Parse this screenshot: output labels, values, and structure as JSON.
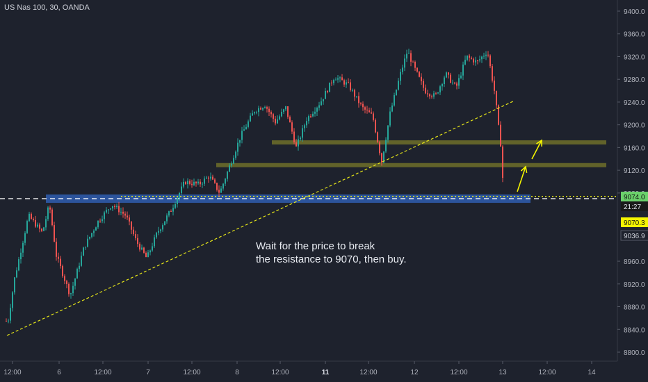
{
  "title": "US Nas 100, 30, OANDA",
  "annotation": {
    "line1": "Wait for the price to break",
    "line2": "the resistance to 9070, then buy."
  },
  "colors": {
    "background": "#1e222d",
    "up_candle": "#26a69a",
    "down_candle": "#ef5350",
    "trendline": "#e6e619",
    "zone": "#6e6e2a",
    "support_zone": "#2e5aa8",
    "arrow": "#f5f500",
    "text": "#b2b5be"
  },
  "chart_data": {
    "type": "candlestick",
    "symbol": "US Nas 100",
    "timeframe": "30",
    "source": "OANDA",
    "ylim": [
      8780,
      9420
    ],
    "y_ticks": [
      9400.0,
      9360.0,
      9320.0,
      9280.0,
      9240.0,
      9200.0,
      9160.0,
      9120.0,
      9080.0,
      8960.0,
      8920.0,
      8880.0,
      8840.0,
      8800.0
    ],
    "x_ticks": [
      "12:00",
      "6",
      "12:00",
      "7",
      "12:00",
      "8",
      "12:00",
      "11",
      "12:00",
      "12",
      "12:00",
      "13",
      "12:00",
      "14"
    ],
    "price_labels": [
      {
        "label": "9074.0",
        "value": 9074.0,
        "color": "#6bd16b"
      },
      {
        "label": "21:27",
        "value": 9057,
        "color": "#1a1a1a"
      },
      {
        "label": "9070.3",
        "value": 9047,
        "color": "#f5f500"
      },
      {
        "label": "9036.9",
        "value": 9036.9,
        "color": "#1e222d"
      }
    ],
    "close_value": 9070.3,
    "support_level": 9070,
    "horizontal_zones": [
      {
        "name": "resistance zone 1",
        "value": 9169
      },
      {
        "name": "resistance zone 2",
        "value": 9129
      },
      {
        "name": "support zone",
        "value": 9070
      }
    ],
    "dotted_line": 9074.0,
    "trendline": {
      "from": {
        "x": "5 10:00",
        "y": 8830
      },
      "to": {
        "x": "13 00:30",
        "y": 9245
      }
    },
    "candles_path": [
      [
        0,
        8875
      ],
      [
        10,
        8850
      ],
      [
        20,
        8930
      ],
      [
        40,
        9040
      ],
      [
        60,
        9010
      ],
      [
        70,
        9060
      ],
      [
        80,
        8970
      ],
      [
        100,
        8900
      ],
      [
        120,
        8985
      ],
      [
        140,
        9030
      ],
      [
        160,
        9060
      ],
      [
        180,
        9040
      ],
      [
        195,
        8995
      ],
      [
        210,
        8965
      ],
      [
        225,
        9010
      ],
      [
        245,
        9050
      ],
      [
        265,
        9100
      ],
      [
        285,
        9095
      ],
      [
        300,
        9110
      ],
      [
        315,
        9080
      ],
      [
        330,
        9130
      ],
      [
        345,
        9180
      ],
      [
        365,
        9225
      ],
      [
        380,
        9235
      ],
      [
        395,
        9205
      ],
      [
        410,
        9230
      ],
      [
        425,
        9160
      ],
      [
        440,
        9210
      ],
      [
        460,
        9240
      ],
      [
        480,
        9285
      ],
      [
        500,
        9270
      ],
      [
        520,
        9230
      ],
      [
        535,
        9215
      ],
      [
        548,
        9135
      ],
      [
        560,
        9220
      ],
      [
        575,
        9290
      ],
      [
        585,
        9330
      ],
      [
        595,
        9300
      ],
      [
        610,
        9260
      ],
      [
        625,
        9250
      ],
      [
        640,
        9290
      ],
      [
        655,
        9265
      ],
      [
        670,
        9320
      ],
      [
        685,
        9310
      ],
      [
        700,
        9330
      ],
      [
        710,
        9260
      ],
      [
        718,
        9180
      ],
      [
        724,
        9070
      ]
    ]
  }
}
